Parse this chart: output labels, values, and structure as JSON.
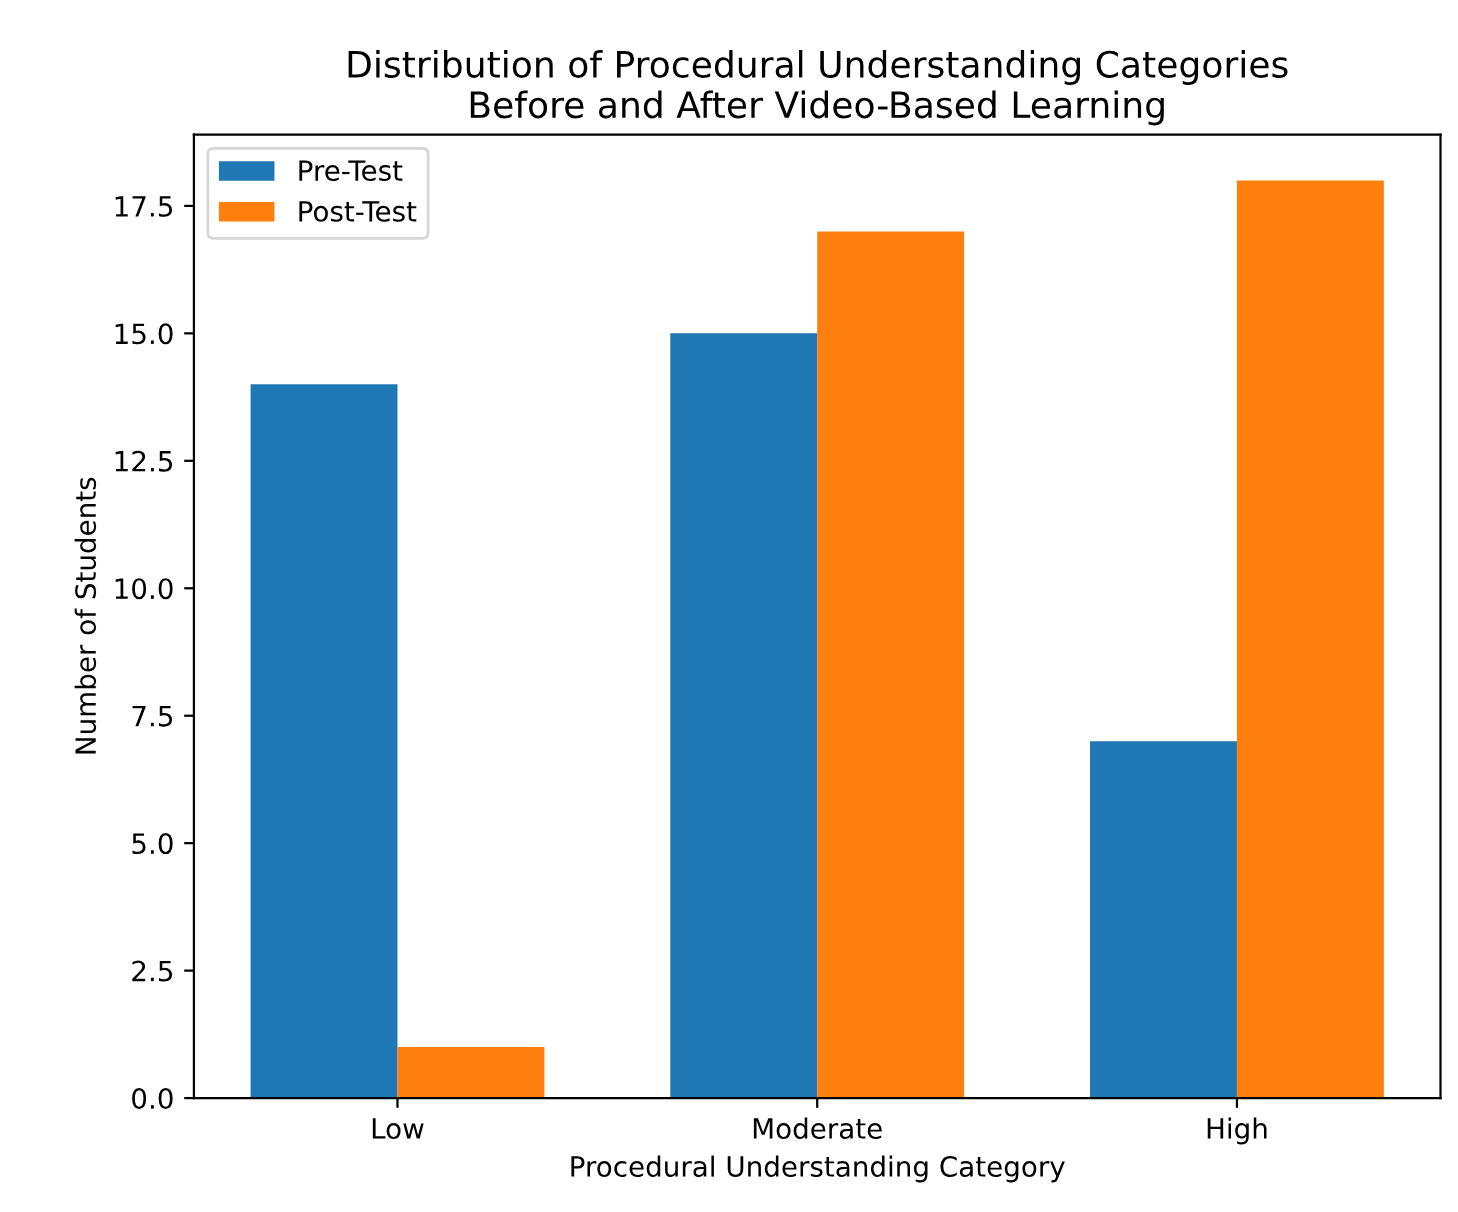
{
  "chart_data": {
    "type": "bar",
    "title": "Distribution of Procedural Understanding Categories\nBefore and After Video-Based Learning",
    "xlabel": "Procedural Understanding Category",
    "ylabel": "Number of Students",
    "categories": [
      "Low",
      "Moderate",
      "High"
    ],
    "series": [
      {
        "name": "Pre-Test",
        "color": "#1f77b4",
        "values": [
          14,
          15,
          7
        ]
      },
      {
        "name": "Post-Test",
        "color": "#ff7f0e",
        "values": [
          1,
          17,
          18
        ]
      }
    ],
    "ylim": [
      0,
      18.9
    ],
    "yticks": [
      {
        "value": 0,
        "label": "0.0"
      },
      2.5,
      {
        "value": 5,
        "label": "5.0"
      },
      7.5,
      {
        "value": 10,
        "label": "10.0"
      },
      12.5,
      {
        "value": 15,
        "label": "15.0"
      },
      17.5
    ],
    "legend": "top left",
    "grid": false
  }
}
